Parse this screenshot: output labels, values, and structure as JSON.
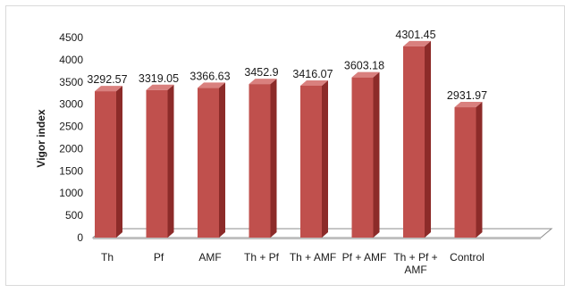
{
  "chart_data": {
    "type": "bar",
    "ylabel": "Vigor index",
    "categories": [
      [
        "Th"
      ],
      [
        "Pf"
      ],
      [
        "AMF"
      ],
      [
        "Th + Pf"
      ],
      [
        "Th + AMF"
      ],
      [
        "Pf + AMF"
      ],
      [
        "Th + Pf +",
        "AMF"
      ],
      [
        "Control"
      ]
    ],
    "values": [
      3292.57,
      3319.05,
      3366.63,
      3452.9,
      3416.07,
      3603.18,
      4301.45,
      2931.97
    ],
    "value_labels": [
      "3292.57",
      "3319.05",
      "3366.63",
      "3452.9",
      "3416.07",
      "3603.18",
      "4301.45",
      "2931.97"
    ],
    "ylim": [
      0,
      4500
    ],
    "yticks": [
      0,
      500,
      1000,
      1500,
      2000,
      2500,
      3000,
      3500,
      4000,
      4500
    ],
    "grid": false,
    "legend": "none",
    "style": "3d-column",
    "colors": {
      "bar_front": "#c0504d",
      "bar_side": "#8c2b29",
      "bar_top": "#d9807e",
      "floor": "#ffffff",
      "floor_edge": "#8c8c8c"
    }
  }
}
